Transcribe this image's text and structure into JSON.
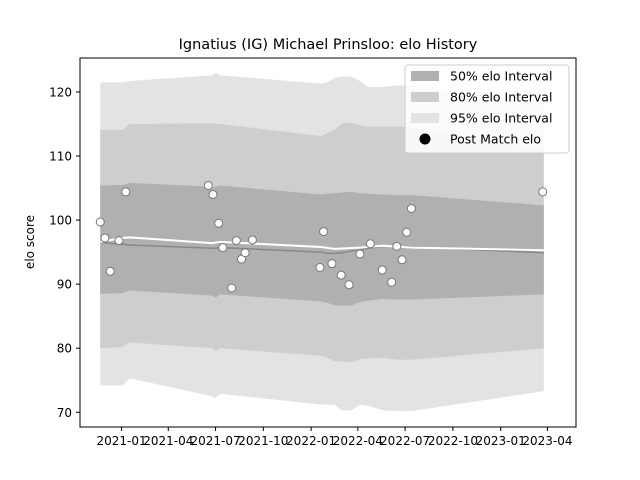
{
  "chart_data": {
    "type": "line",
    "title": "Ignatius (IG) Michael Prinsloo: elo History",
    "xlabel": "",
    "ylabel": "elo score",
    "xlim": [
      "2020-10-13",
      "2023-05-26"
    ],
    "ylim": [
      67.7,
      125.3
    ],
    "yticks": [
      70,
      80,
      90,
      100,
      110,
      120
    ],
    "xticks": [
      "2021-01",
      "2021-04",
      "2021-07",
      "2021-10",
      "2022-01",
      "2022-04",
      "2022-07",
      "2022-10",
      "2023-01",
      "2023-04"
    ],
    "grid": false,
    "legend_position": "top-right",
    "colors": {
      "band_50": "#b0b0b0",
      "band_80": "#cecece",
      "band_95": "#e3e3e3",
      "mean_line": "#888888",
      "current_line": "#ffffff",
      "points_fill": "#ffffff",
      "points_edge": "#777777"
    },
    "legend": [
      {
        "label": "50% elo Interval",
        "kind": "band",
        "color": "#b0b0b0"
      },
      {
        "label": "80% elo Interval",
        "kind": "band",
        "color": "#cecece"
      },
      {
        "label": "95% elo Interval",
        "kind": "band",
        "color": "#e3e3e3"
      },
      {
        "label": "Post Match elo",
        "kind": "marker",
        "color": "#000000"
      }
    ],
    "bands": {
      "x": [
        "2020-11-21",
        "2021-01-03",
        "2021-01-17",
        "2021-06-24",
        "2021-07-01",
        "2021-07-10",
        "2022-01-20",
        "2022-02-01",
        "2022-02-15",
        "2022-03-01",
        "2022-03-20",
        "2022-04-05",
        "2022-04-21",
        "2022-05-20",
        "2022-06-15",
        "2022-07-15",
        "2023-03-25"
      ],
      "mean": [
        96.5,
        96.2,
        96.1,
        95.6,
        95.6,
        95.7,
        95.0,
        94.8,
        94.8,
        94.9,
        95.2,
        95.3,
        95.6,
        95.9,
        95.9,
        95.8,
        94.9
      ],
      "p50": {
        "lower": [
          88.5,
          88.6,
          89.0,
          88.2,
          87.9,
          88.4,
          87.3,
          87.1,
          86.7,
          86.6,
          86.7,
          87.2,
          87.4,
          87.7,
          87.6,
          87.6,
          88.4
        ],
        "upper": [
          105.4,
          105.5,
          105.8,
          105.2,
          105.2,
          105.4,
          104.0,
          104.1,
          104.2,
          104.3,
          104.4,
          104.2,
          104.1,
          104.0,
          103.9,
          103.9,
          102.3
        ]
      },
      "p80": {
        "lower": [
          80.0,
          80.2,
          80.9,
          80.0,
          79.6,
          80.0,
          78.8,
          78.5,
          78.0,
          77.9,
          77.8,
          78.3,
          78.4,
          78.5,
          78.2,
          78.2,
          80.0
        ],
        "upper": [
          114.1,
          114.1,
          115.0,
          115.1,
          115.0,
          115.0,
          113.1,
          113.6,
          114.1,
          115.1,
          115.2,
          114.8,
          114.6,
          114.6,
          114.6,
          114.5,
          111.0
        ]
      },
      "p95": {
        "lower": [
          74.2,
          74.2,
          75.3,
          72.5,
          72.2,
          72.9,
          71.2,
          71.2,
          71.2,
          70.3,
          70.3,
          71.2,
          71.0,
          70.3,
          70.2,
          70.2,
          73.3
        ],
        "upper": [
          121.5,
          121.5,
          121.7,
          122.6,
          123.0,
          122.6,
          121.3,
          121.5,
          122.2,
          122.4,
          122.4,
          121.7,
          120.8,
          120.8,
          121.0,
          121.0,
          118.5
        ]
      }
    },
    "current_line": {
      "x": [
        "2020-11-21",
        "2021-01-03",
        "2021-01-17",
        "2021-06-24",
        "2021-07-10",
        "2022-01-20",
        "2022-02-15",
        "2022-04-05",
        "2022-05-20",
        "2022-07-15",
        "2023-03-25"
      ],
      "y": [
        96.6,
        97.2,
        97.3,
        96.4,
        96.6,
        95.8,
        95.5,
        95.7,
        96.0,
        95.7,
        95.3
      ]
    },
    "points": {
      "name": "Post Match elo",
      "x": [
        "2020-11-21",
        "2020-11-30",
        "2020-12-10",
        "2020-12-27",
        "2021-01-09",
        "2021-06-17",
        "2021-06-26",
        "2021-07-07",
        "2021-07-15",
        "2021-08-01",
        "2021-08-10",
        "2021-08-20",
        "2021-08-27",
        "2021-09-10",
        "2022-01-18",
        "2022-01-25",
        "2022-02-10",
        "2022-02-28",
        "2022-03-15",
        "2022-04-05",
        "2022-04-25",
        "2022-05-18",
        "2022-06-05",
        "2022-06-15",
        "2022-06-25",
        "2022-07-04",
        "2022-07-13",
        "2023-03-23"
      ],
      "y": [
        99.7,
        97.2,
        92.0,
        96.8,
        104.4,
        105.4,
        104.0,
        99.5,
        95.7,
        89.4,
        96.8,
        93.9,
        94.9,
        96.9,
        92.6,
        98.2,
        93.2,
        91.4,
        89.9,
        94.7,
        96.3,
        92.2,
        90.3,
        95.9,
        93.8,
        98.1,
        101.8,
        104.4
      ]
    }
  }
}
